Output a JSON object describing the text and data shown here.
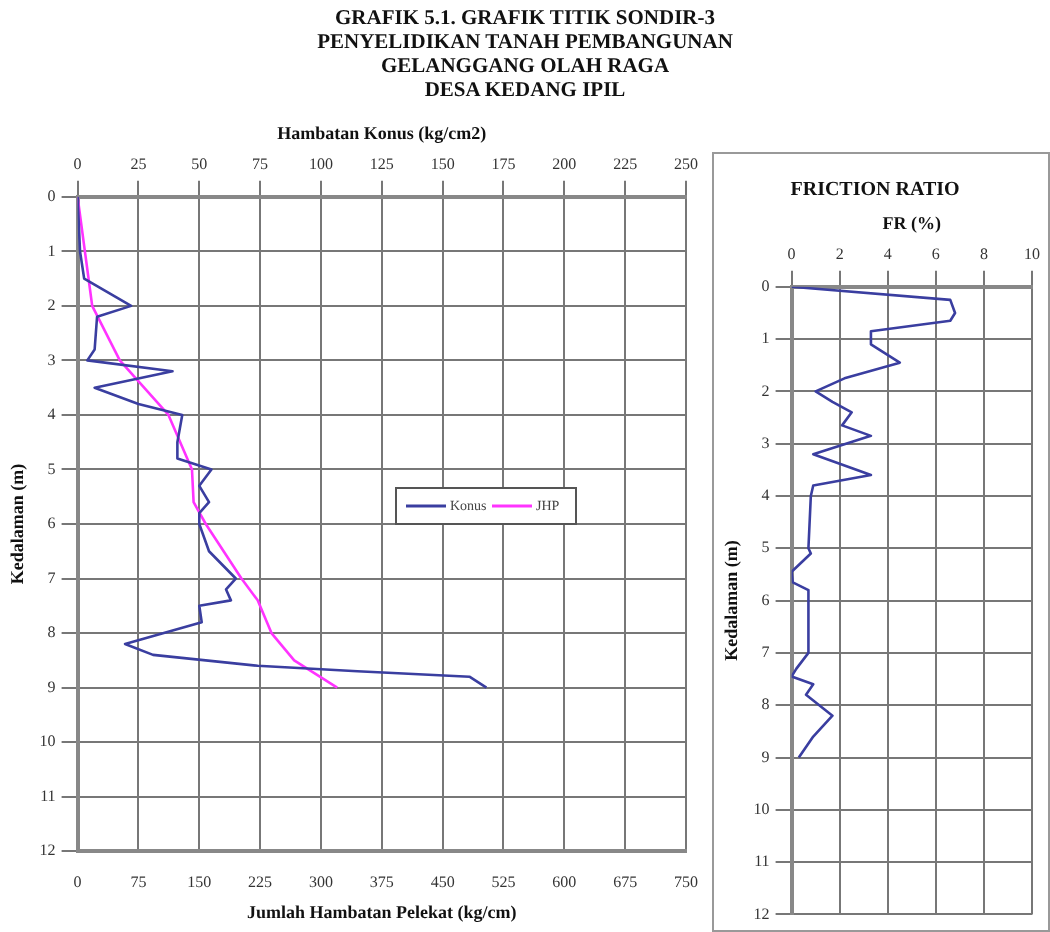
{
  "chart_data": [
    {
      "type": "line",
      "title": "GRAFIK 5.1. GRAFIK TITIK SONDIR-3\nPENYELIDIKAN TANAH PEMBANGUNAN\nGELANGGANG OLAH RAGA\nDESA KEDANG IPIL",
      "xlabel": "Jumlah Hambatan Pelekat (kg/cm)",
      "x2label": "Hambatan Konus (kg/cm2)",
      "ylabel": "Kedalaman (m)",
      "xlim": [
        0,
        750
      ],
      "xticks": [
        0,
        75,
        150,
        225,
        300,
        375,
        450,
        525,
        600,
        675,
        750
      ],
      "x2lim": [
        0,
        250
      ],
      "x2ticks": [
        0,
        25,
        50,
        75,
        100,
        125,
        150,
        175,
        200,
        225,
        250
      ],
      "ylim": [
        12,
        0
      ],
      "yticks": [
        0,
        1,
        2,
        3,
        4,
        5,
        6,
        7,
        8,
        9,
        10,
        11,
        12
      ],
      "grid": true,
      "legend": "right",
      "marker": "none",
      "line_style": "solid",
      "series": [
        {
          "name": "Konus",
          "color": "#3a3ea0",
          "axis": "x2",
          "x": [
            0,
            1,
            2.7,
            22,
            8,
            7,
            4,
            39,
            7,
            25,
            43,
            41,
            41,
            55,
            50,
            54,
            50,
            50,
            54,
            65,
            61,
            63,
            50,
            51,
            19.5,
            31,
            74,
            115,
            161,
            168
          ],
          "values": [
            0,
            1,
            1.5,
            2,
            2.2,
            2.8,
            3,
            3.2,
            3.5,
            3.8,
            4,
            4.5,
            4.8,
            5,
            5.3,
            5.6,
            5.8,
            6,
            6.5,
            7,
            7.2,
            7.4,
            7.5,
            7.8,
            8.2,
            8.4,
            8.6,
            8.7,
            8.8,
            9
          ]
        },
        {
          "name": "JHP",
          "color": "#ff33ff",
          "x": [
            0,
            18,
            52,
            112,
            141,
            143,
            158,
            202,
            222,
            239,
            267,
            320
          ],
          "values": [
            0,
            2,
            3,
            4,
            5,
            5.6,
            6,
            7,
            7.4,
            8,
            8.5,
            9
          ]
        }
      ]
    },
    {
      "type": "line",
      "title": "FRICTION RATIO",
      "xlabel": "FR (%)",
      "ylabel": "Kedalaman (m)",
      "xlim": [
        0,
        10
      ],
      "xticks": [
        0,
        2,
        4,
        6,
        8,
        10
      ],
      "ylim": [
        12,
        0
      ],
      "yticks": [
        0,
        1,
        2,
        3,
        4,
        5,
        6,
        7,
        8,
        9,
        10,
        11,
        12
      ],
      "grid": true,
      "marker": "none",
      "line_style": "solid",
      "series": [
        {
          "color": "#3a3ea0",
          "x": [
            0,
            6.6,
            6.8,
            6.6,
            3.3,
            3.3,
            4.5,
            2.2,
            1.0,
            1.7,
            2.5,
            2.1,
            3.3,
            0.9,
            3.3,
            0.9,
            0.8,
            0.7,
            0.8,
            0,
            0.05,
            0.7,
            0.7,
            0.2,
            0,
            0.9,
            0.6,
            1.7,
            0.9,
            0.3
          ],
          "values": [
            0,
            0.25,
            0.5,
            0.65,
            0.85,
            1.1,
            1.45,
            1.75,
            2,
            2.2,
            2.4,
            2.65,
            2.85,
            3.2,
            3.6,
            3.8,
            4,
            5,
            5.1,
            5.45,
            5.65,
            5.8,
            7,
            7.3,
            7.45,
            7.6,
            7.8,
            8.2,
            8.6,
            9
          ]
        }
      ]
    }
  ]
}
